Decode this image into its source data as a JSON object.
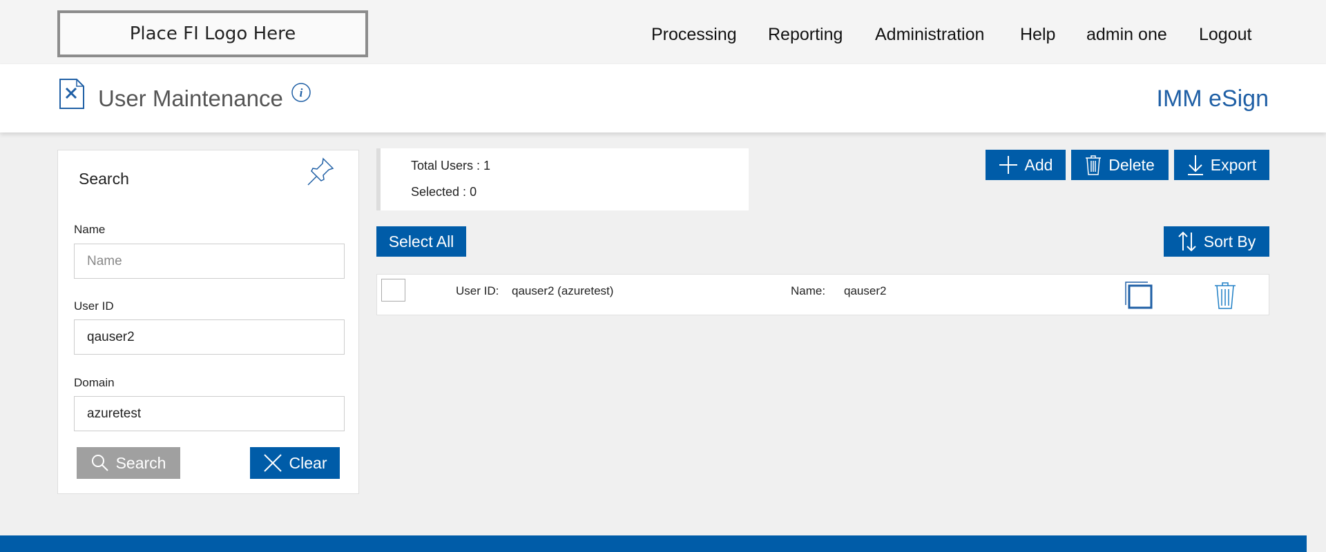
{
  "logo": {
    "text": "Place FI Logo Here"
  },
  "nav": [
    "Processing",
    "Reporting",
    "Administration",
    "Help",
    "admin one",
    "Logout"
  ],
  "header": {
    "title": "User Maintenance",
    "brand": "IMM eSign"
  },
  "search": {
    "title": "Search",
    "name_label": "Name",
    "name_placeholder": "Name",
    "name_value": "",
    "userid_label": "User ID",
    "userid_value": "qauser2",
    "domain_label": "Domain",
    "domain_value": "azuretest",
    "search_button": "Search",
    "clear_button": "Clear"
  },
  "summary": {
    "total_label": "Total Users : ",
    "total": "1",
    "selected_label": "Selected : ",
    "selected": "0"
  },
  "toolbar": {
    "add": "Add",
    "delete": "Delete",
    "export": "Export",
    "select_all": "Select All",
    "sort_by": "Sort By"
  },
  "users": [
    {
      "userid_label": "User ID:",
      "userid": "qauser2 (azuretest)",
      "name_label": "Name:",
      "name": "qauser2",
      "selected": false
    }
  ],
  "colors": {
    "accent": "#005ca8",
    "brand": "#1f5fa5",
    "disabled": "#a0a0a0"
  }
}
